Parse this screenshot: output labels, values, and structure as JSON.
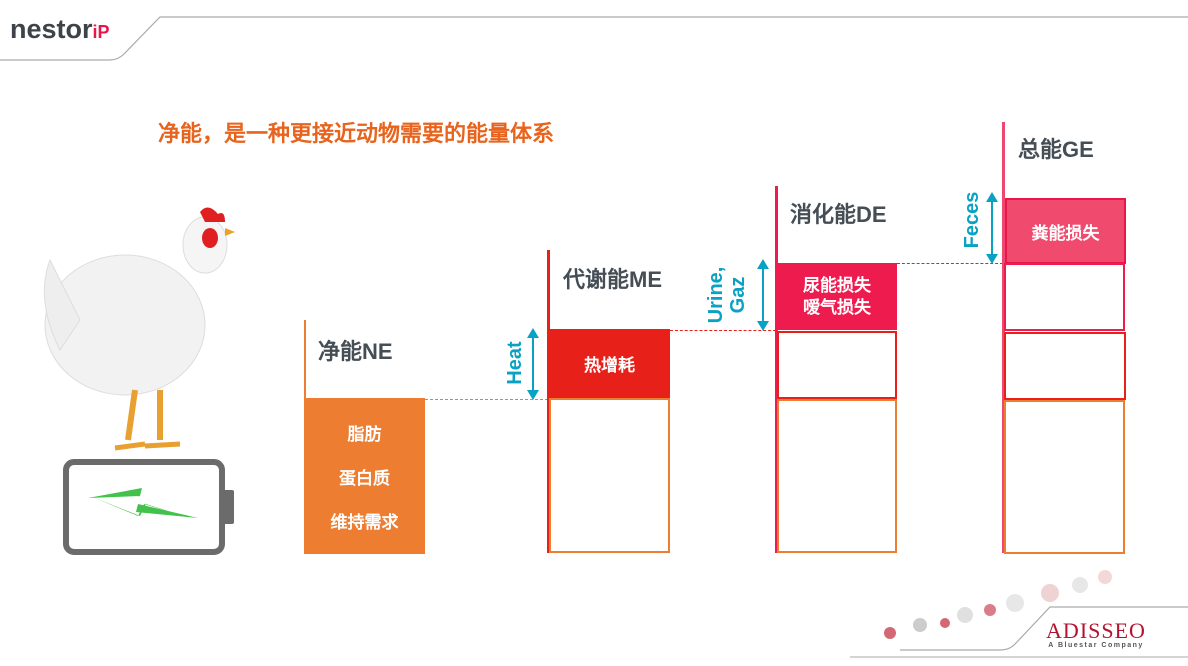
{
  "header": {
    "logo_text": "nestor",
    "logo_suffix": "iP"
  },
  "title": "净能，是一种更接近动物需要的能量体系",
  "colors": {
    "title": "#E8641E",
    "ne": "#ED7D31",
    "me": "#E8201A",
    "de": "#EE1C4E",
    "ge": "#F04A6E",
    "arrow": "#0AA2C4",
    "label": "#454D55"
  },
  "illustration": {
    "animal": "chicken",
    "battery_icon": "battery-charging-icon"
  },
  "columns": {
    "ne": {
      "label": "净能NE",
      "items": [
        "脂肪",
        "蛋白质",
        "维持需求"
      ]
    },
    "me": {
      "label": "代谢能ME",
      "loss": "热增耗",
      "arrow_label": "Heat"
    },
    "de": {
      "label": "消化能DE",
      "loss_line1": "尿能损失",
      "loss_line2": "嗳气损失",
      "arrow_label_1": "Urine,",
      "arrow_label_2": "Gaz"
    },
    "ge": {
      "label": "总能GE",
      "loss": "粪能损失",
      "arrow_label": "Feces"
    }
  },
  "footer": {
    "brand": "ADISSEO",
    "tagline": "A Bluestar Company"
  }
}
